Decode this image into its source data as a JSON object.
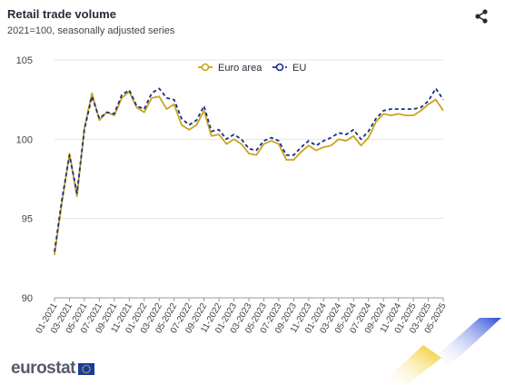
{
  "header": {
    "title": "Retail trade volume",
    "subtitle": "2021=100, seasonally adjusted series"
  },
  "branding": {
    "logo_text": "eurostat"
  },
  "colors": {
    "euro_area": "#c9a41c",
    "eu": "#1a2f87",
    "grid": "#e4e4e4"
  },
  "icons": {
    "share": "share-icon",
    "flag": "eu-flag-icon"
  },
  "chart_data": {
    "type": "line",
    "title": "Retail trade volume",
    "subtitle": "2021=100, seasonally adjusted series",
    "ylim": [
      90,
      105
    ],
    "yticks": [
      90,
      95,
      100,
      105
    ],
    "grid": true,
    "legend_position": "top",
    "x": [
      "01-2021",
      "02-2021",
      "03-2021",
      "04-2021",
      "05-2021",
      "06-2021",
      "07-2021",
      "08-2021",
      "09-2021",
      "10-2021",
      "11-2021",
      "12-2021",
      "01-2022",
      "02-2022",
      "03-2022",
      "04-2022",
      "05-2022",
      "06-2022",
      "07-2022",
      "08-2022",
      "09-2022",
      "10-2022",
      "11-2022",
      "12-2022",
      "01-2023",
      "02-2023",
      "03-2023",
      "04-2023",
      "05-2023",
      "06-2023",
      "07-2023",
      "08-2023",
      "09-2023",
      "10-2023",
      "11-2023",
      "12-2023",
      "01-2024",
      "02-2024",
      "03-2024",
      "04-2024",
      "05-2024",
      "06-2024",
      "07-2024",
      "08-2024",
      "09-2024",
      "10-2024",
      "11-2024",
      "12-2024",
      "01-2025",
      "02-2025",
      "03-2025",
      "04-2025",
      "05-2025"
    ],
    "xtick_labels": [
      "01-2021",
      "03-2021",
      "05-2021",
      "07-2021",
      "09-2021",
      "11-2021",
      "01-2022",
      "03-2022",
      "05-2022",
      "07-2022",
      "09-2022",
      "11-2022",
      "01-2023",
      "03-2023",
      "05-2023",
      "07-2023",
      "09-2023",
      "11-2023",
      "01-2024",
      "03-2024",
      "05-2024",
      "07-2024",
      "09-2024",
      "11-2024",
      "01-2025",
      "03-2025",
      "05-2025"
    ],
    "series": [
      {
        "name": "Euro area",
        "color": "#c9a41c",
        "style": "solid",
        "values": [
          92.7,
          96.0,
          99.1,
          96.4,
          100.7,
          102.9,
          101.2,
          101.7,
          101.5,
          102.6,
          103.0,
          102.0,
          101.7,
          102.6,
          102.7,
          101.9,
          102.2,
          100.9,
          100.6,
          100.9,
          101.8,
          100.2,
          100.3,
          99.7,
          100.0,
          99.7,
          99.1,
          99.0,
          99.7,
          99.9,
          99.7,
          98.7,
          98.7,
          99.2,
          99.6,
          99.3,
          99.5,
          99.6,
          100.0,
          99.9,
          100.2,
          99.6,
          100.1,
          101.1,
          101.6,
          101.5,
          101.6,
          101.5,
          101.5,
          101.8,
          102.2,
          102.5,
          101.8
        ]
      },
      {
        "name": "EU",
        "color": "#1a2f87",
        "style": "dashed",
        "values": [
          92.9,
          96.2,
          99.0,
          96.6,
          100.6,
          102.7,
          101.3,
          101.7,
          101.6,
          102.8,
          103.1,
          102.1,
          101.9,
          102.9,
          103.2,
          102.6,
          102.5,
          101.3,
          100.9,
          101.2,
          102.1,
          100.5,
          100.6,
          100.0,
          100.3,
          100.0,
          99.4,
          99.3,
          99.9,
          100.1,
          99.9,
          99.0,
          99.0,
          99.5,
          99.9,
          99.6,
          99.9,
          100.1,
          100.4,
          100.3,
          100.6,
          100.0,
          100.5,
          101.3,
          101.8,
          101.9,
          101.9,
          101.9,
          101.9,
          102.0,
          102.4,
          103.2,
          102.5
        ]
      }
    ]
  }
}
